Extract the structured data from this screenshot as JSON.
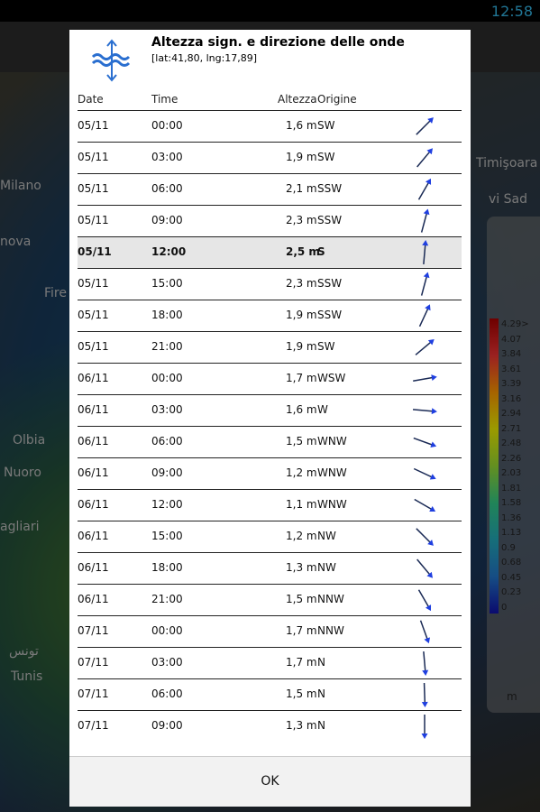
{
  "status": {
    "time": "12:58"
  },
  "map": {
    "labels": [
      "Milano",
      "Timişoara",
      "vi Sad",
      "nova",
      "Fire",
      "Olbia",
      "Nuoro",
      "agliari",
      "تونس",
      "Tunis"
    ]
  },
  "legend": {
    "values": [
      "4.29>",
      "4.07",
      "3.84",
      "3.61",
      "3.39",
      "3.16",
      "2.94",
      "2.71",
      "2.48",
      "2.26",
      "2.03",
      "1.81",
      "1.58",
      "1.36",
      "1.13",
      "0.9",
      "0.68",
      "0.45",
      "0.23",
      "0"
    ],
    "unit": "m"
  },
  "dialog": {
    "title": "Altezza sign. e direzione delle onde",
    "subtitle": "[lat:41,80, lng:17,89]",
    "columns": [
      "Date",
      "Time",
      "Altezza",
      "Origine"
    ],
    "rows": [
      [
        "05/11",
        "00:00",
        "1,6 m",
        "SW"
      ],
      [
        "05/11",
        "03:00",
        "1,9 m",
        "SW"
      ],
      [
        "05/11",
        "06:00",
        "2,1 m",
        "SSW"
      ],
      [
        "05/11",
        "09:00",
        "2,3 m",
        "SSW"
      ],
      [
        "05/11",
        "12:00",
        "2,5 m",
        "S"
      ],
      [
        "05/11",
        "15:00",
        "2,3 m",
        "SSW"
      ],
      [
        "05/11",
        "18:00",
        "1,9 m",
        "SSW"
      ],
      [
        "05/11",
        "21:00",
        "1,9 m",
        "SW"
      ],
      [
        "06/11",
        "00:00",
        "1,7 m",
        "WSW"
      ],
      [
        "06/11",
        "03:00",
        "1,6 m",
        "W"
      ],
      [
        "06/11",
        "06:00",
        "1,5 m",
        "WNW"
      ],
      [
        "06/11",
        "09:00",
        "1,2 m",
        "WNW"
      ],
      [
        "06/11",
        "12:00",
        "1,1 m",
        "WNW"
      ],
      [
        "06/11",
        "15:00",
        "1,2 m",
        "NW"
      ],
      [
        "06/11",
        "18:00",
        "1,3 m",
        "NW"
      ],
      [
        "06/11",
        "21:00",
        "1,5 m",
        "NNW"
      ],
      [
        "07/11",
        "00:00",
        "1,7 m",
        "NNW"
      ],
      [
        "07/11",
        "03:00",
        "1,7 m",
        "N"
      ],
      [
        "07/11",
        "06:00",
        "1,5 m",
        "N"
      ],
      [
        "07/11",
        "09:00",
        "1,3 m",
        "N"
      ]
    ],
    "button": "OK"
  }
}
